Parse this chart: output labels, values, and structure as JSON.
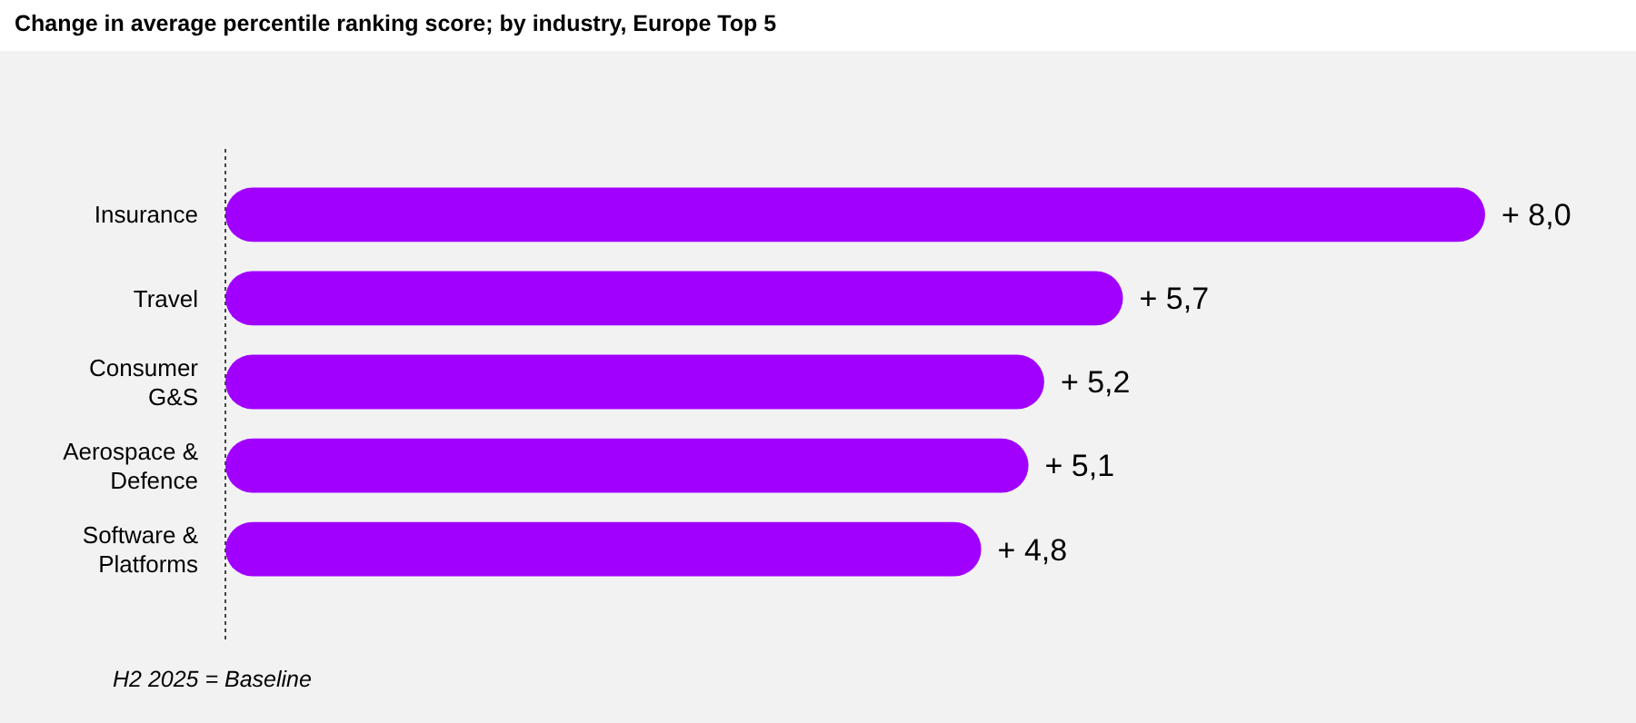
{
  "chart_data": {
    "type": "bar",
    "orientation": "horizontal",
    "title": "Change in average percentile ranking score; by industry, Europe Top 5",
    "categories": [
      "Insurance",
      "Travel",
      "Consumer G&S",
      "Aerospace & Defence",
      "Software & Platforms"
    ],
    "values": [
      8.0,
      5.7,
      5.2,
      5.1,
      4.8
    ],
    "value_labels": [
      "+ 8,0",
      "+ 5,7",
      "+ 5,2",
      "+ 5,1",
      "+ 4,8"
    ],
    "color": "#a100ff",
    "annotations": [
      "H2 2025 = Baseline"
    ]
  }
}
